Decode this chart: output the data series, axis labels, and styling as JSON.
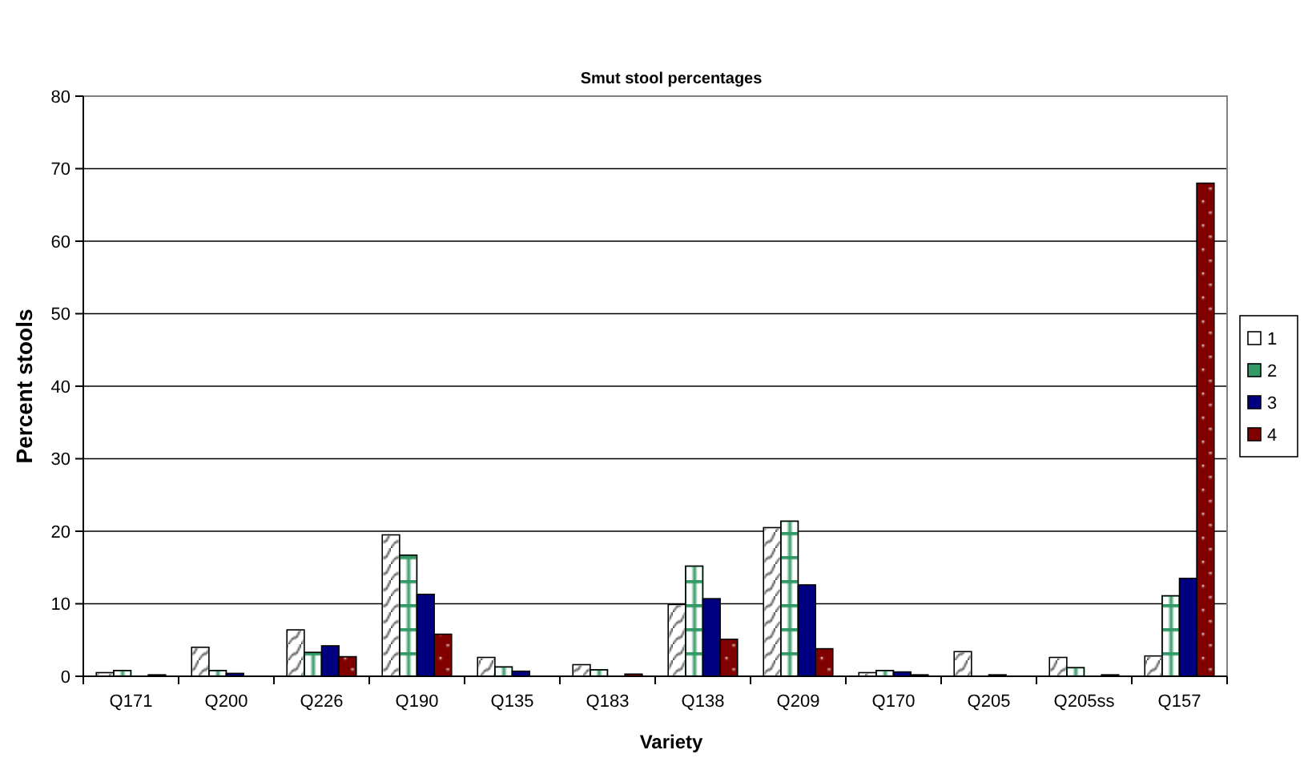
{
  "chart_data": {
    "type": "bar",
    "title": "Smut stool percentages",
    "xlabel": "Variety",
    "ylabel": "Percent stools",
    "categories": [
      "Q171",
      "Q200",
      "Q226",
      "Q190",
      "Q135",
      "Q183",
      "Q138",
      "Q209",
      "Q170",
      "Q205",
      "Q205ss",
      "Q157"
    ],
    "series": [
      {
        "name": "1",
        "color": "#ffffff",
        "values": [
          0.5,
          4.0,
          6.4,
          19.5,
          2.6,
          1.6,
          9.9,
          20.5,
          0.5,
          3.4,
          2.6,
          2.8
        ]
      },
      {
        "name": "2",
        "color": "#339966",
        "values": [
          0.8,
          0.8,
          3.3,
          16.7,
          1.3,
          0.9,
          15.2,
          21.4,
          0.8,
          null,
          1.2,
          11.1
        ]
      },
      {
        "name": "3",
        "color": "#000080",
        "values": [
          null,
          0.4,
          4.2,
          11.3,
          0.7,
          null,
          10.7,
          12.6,
          0.6,
          0.2,
          null,
          13.5
        ]
      },
      {
        "name": "4",
        "color": "#800000",
        "values": [
          0.2,
          null,
          2.7,
          5.8,
          null,
          0.3,
          5.1,
          3.8,
          0.2,
          null,
          0.2,
          68
        ]
      }
    ],
    "ylim": [
      0,
      80
    ],
    "yticks": [
      0,
      10,
      20,
      30,
      40,
      50,
      60,
      70,
      80
    ],
    "grid": "y",
    "legend": "right"
  }
}
